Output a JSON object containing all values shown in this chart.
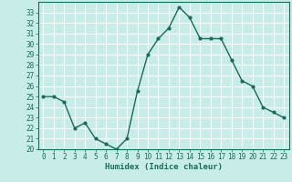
{
  "x": [
    0,
    1,
    2,
    3,
    4,
    5,
    6,
    7,
    8,
    9,
    10,
    11,
    12,
    13,
    14,
    15,
    16,
    17,
    18,
    19,
    20,
    21,
    22,
    23
  ],
  "y": [
    25.0,
    25.0,
    24.5,
    22.0,
    22.5,
    21.0,
    20.5,
    20.0,
    21.0,
    25.5,
    29.0,
    30.5,
    31.5,
    33.5,
    32.5,
    30.5,
    30.5,
    30.5,
    28.5,
    26.5,
    26.0,
    24.0,
    23.5,
    23.0
  ],
  "line_color": "#1a6b5a",
  "marker_color": "#1a6b5a",
  "bg_color": "#c8ece8",
  "grid_color": "#ffffff",
  "tick_color": "#1a6b5a",
  "xlabel": "Humidex (Indice chaleur)",
  "xlabel_color": "#1a6b5a",
  "ylim": [
    20,
    34
  ],
  "xlim": [
    -0.5,
    23.5
  ],
  "yticks": [
    20,
    21,
    22,
    23,
    24,
    25,
    26,
    27,
    28,
    29,
    30,
    31,
    32,
    33
  ],
  "xticks": [
    0,
    1,
    2,
    3,
    4,
    5,
    6,
    7,
    8,
    9,
    10,
    11,
    12,
    13,
    14,
    15,
    16,
    17,
    18,
    19,
    20,
    21,
    22,
    23
  ],
  "font_family": "monospace",
  "label_fontsize": 6.5,
  "tick_fontsize": 5.5
}
